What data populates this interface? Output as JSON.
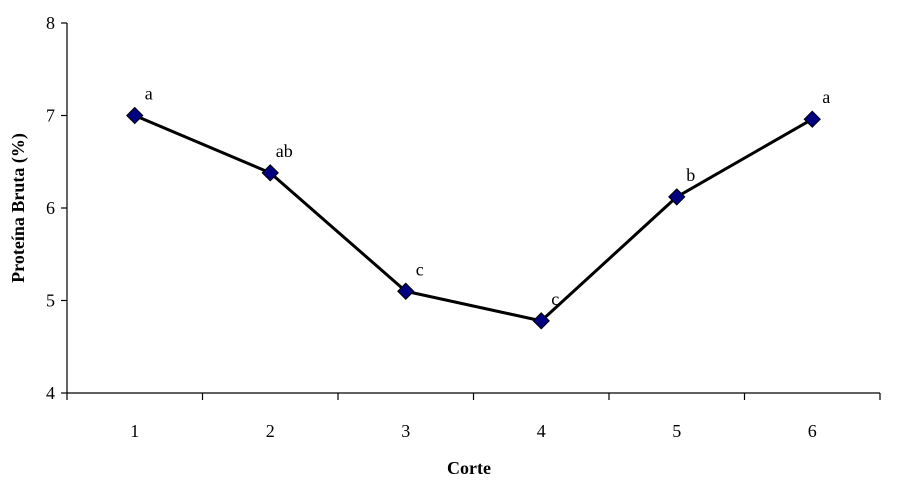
{
  "chart_data": {
    "type": "line",
    "title": "",
    "xlabel": "Corte",
    "ylabel": "Proteína Bruta (%)",
    "x": [
      1,
      2,
      3,
      4,
      5,
      6
    ],
    "x_tick_labels": [
      "1",
      "2",
      "3",
      "4",
      "5",
      "6"
    ],
    "ylim": [
      4,
      8
    ],
    "y_ticks": [
      4,
      5,
      6,
      7,
      8
    ],
    "y_tick_labels": [
      "4",
      "5",
      "6",
      "7",
      "8"
    ],
    "grid": false,
    "legend": "none",
    "series": [
      {
        "values": [
          7.0,
          6.38,
          5.1,
          4.78,
          6.12,
          6.96
        ],
        "point_labels": [
          "a",
          "ab",
          "c",
          "c",
          "b",
          "a"
        ],
        "line_color": "#000000",
        "marker": "diamond",
        "marker_color": "#000080"
      }
    ]
  }
}
